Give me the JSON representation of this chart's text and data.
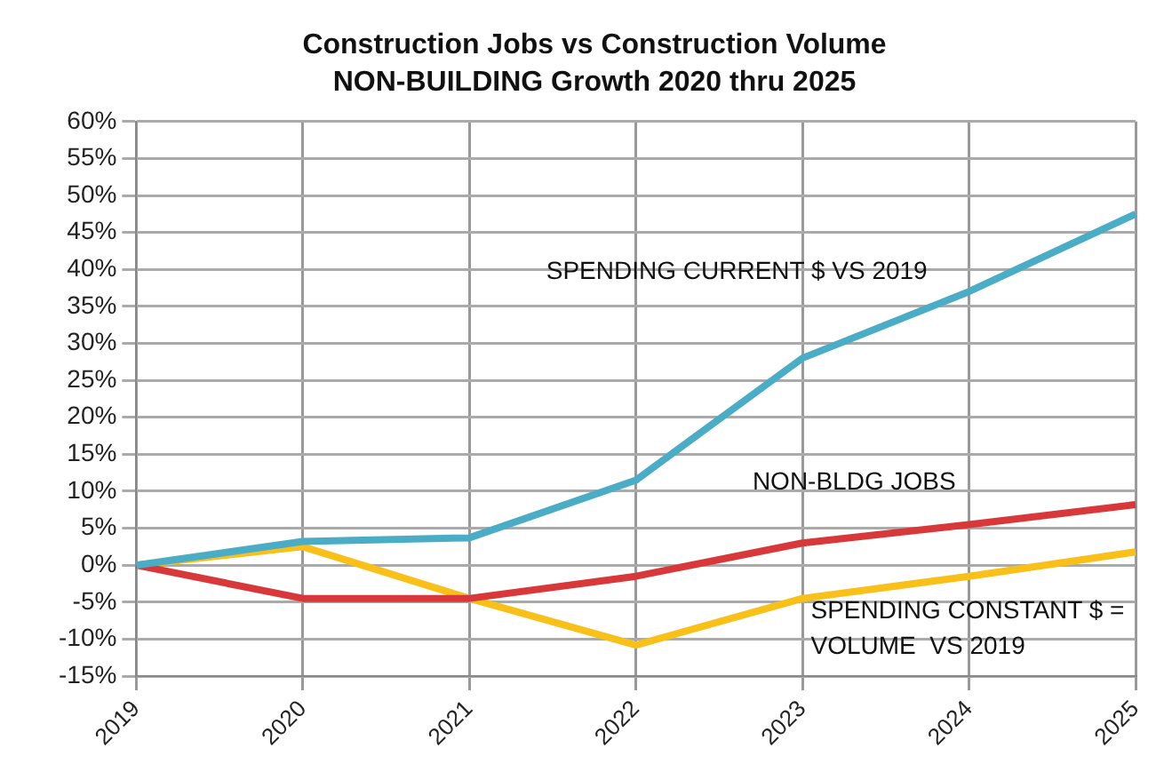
{
  "chart_data": {
    "type": "line",
    "title": "Construction Jobs vs Construction Volume",
    "subtitle": "NON-BUILDING Growth 2020 thru 2025",
    "categories": [
      "2019",
      "2020",
      "2021",
      "2022",
      "2023",
      "2024",
      "2025"
    ],
    "series": [
      {
        "name": "SPENDING CURRENT $ VS 2019",
        "color": "#4bacc6",
        "values": [
          0,
          3.2,
          3.7,
          11.5,
          28,
          37,
          47.5
        ]
      },
      {
        "name": "NON-BLDG JOBS",
        "color": "#d9383a",
        "values": [
          0,
          -4.5,
          -4.5,
          -1.5,
          3,
          5.5,
          8.2
        ]
      },
      {
        "name": "SPENDING CONSTANT $ = VOLUME  VS 2019",
        "color": "#f9c01a",
        "values": [
          0,
          2.5,
          -4.5,
          -10.8,
          -4.5,
          -1.5,
          1.8
        ]
      }
    ],
    "ylim": [
      -15,
      60
    ],
    "yticks": [
      {
        "value": -15,
        "label": "-15%"
      },
      {
        "value": -10,
        "label": "-10%"
      },
      {
        "value": -5,
        "label": "-5%"
      },
      {
        "value": 0,
        "label": "0%"
      },
      {
        "value": 5,
        "label": "5%"
      },
      {
        "value": 10,
        "label": "10%"
      },
      {
        "value": 15,
        "label": "15%"
      },
      {
        "value": 20,
        "label": "20%"
      },
      {
        "value": 25,
        "label": "25%"
      },
      {
        "value": 30,
        "label": "30%"
      },
      {
        "value": 35,
        "label": "35%"
      },
      {
        "value": 40,
        "label": "40%"
      },
      {
        "value": 45,
        "label": "45%"
      },
      {
        "value": 50,
        "label": "50%"
      },
      {
        "value": 55,
        "label": "55%"
      },
      {
        "value": 60,
        "label": "60%"
      }
    ],
    "grid": true,
    "legend": false,
    "marker": "none",
    "line_style": "solid"
  }
}
